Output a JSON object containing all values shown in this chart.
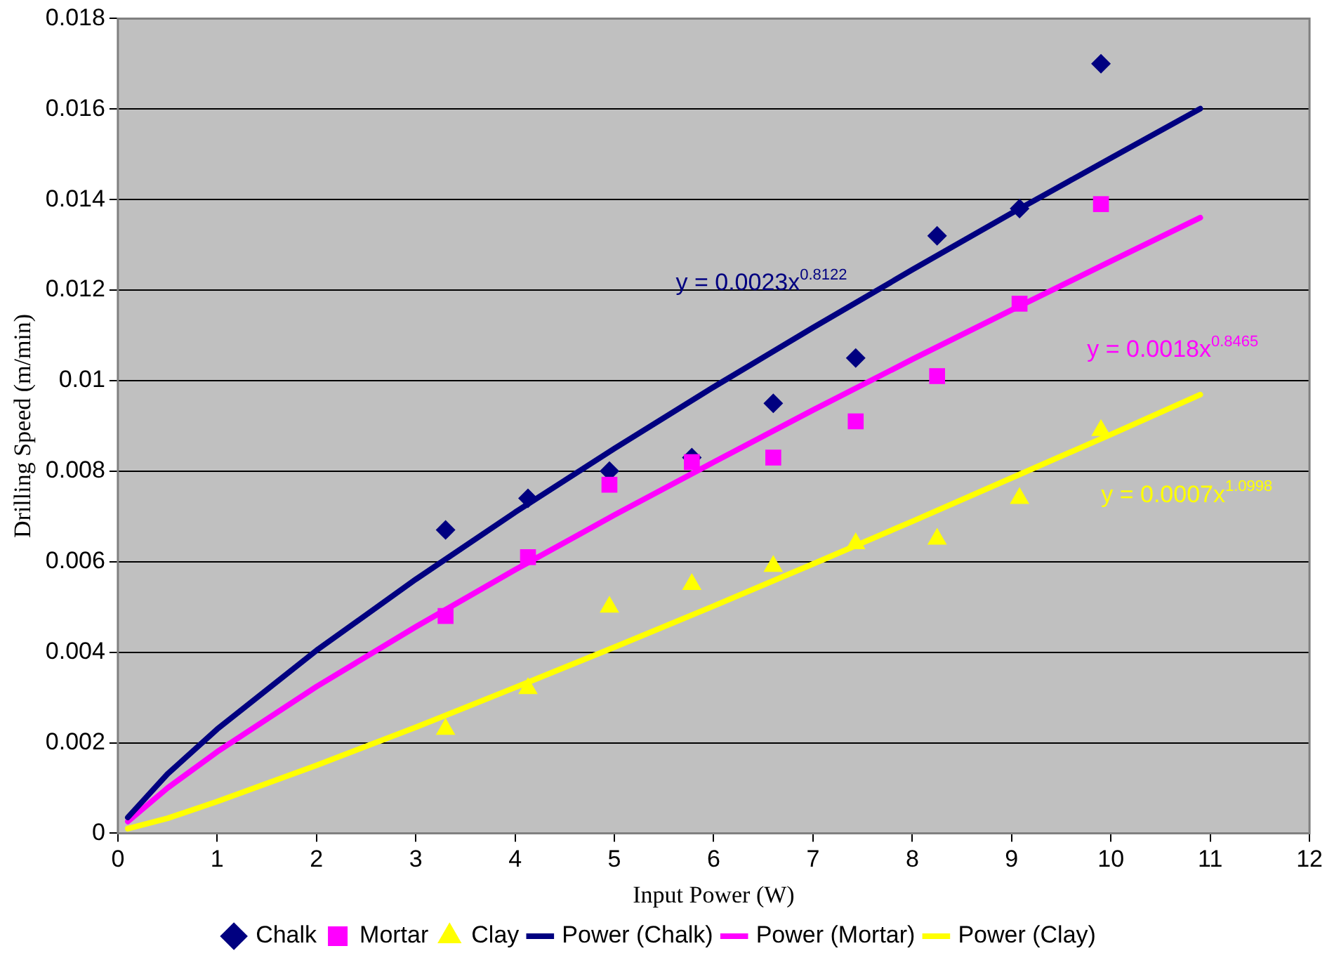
{
  "chart_data": {
    "type": "scatter",
    "xlabel": "Input Power (W)",
    "ylabel": "Drilling Speed (m/min)",
    "xlim": [
      0,
      12
    ],
    "xticks": [
      0,
      1,
      2,
      3,
      4,
      5,
      6,
      7,
      8,
      9,
      10,
      11,
      12
    ],
    "ylim": [
      0,
      0.018
    ],
    "yticks": [
      0,
      0.002,
      0.004,
      0.006,
      0.008,
      0.01,
      0.012,
      0.014,
      0.016,
      0.018
    ],
    "grid": "y",
    "legend": "bottom",
    "series": [
      {
        "name": "Chalk",
        "type": "scatter",
        "marker": "diamond",
        "color": "#000080",
        "x": [
          3.3,
          4.13,
          4.95,
          5.78,
          6.6,
          7.43,
          8.25,
          9.08,
          9.9
        ],
        "values": [
          0.0067,
          0.0074,
          0.008,
          0.0083,
          0.0095,
          0.0105,
          0.0132,
          0.0138,
          0.017
        ]
      },
      {
        "name": "Mortar",
        "type": "scatter",
        "marker": "square",
        "color": "#ff00ff",
        "x": [
          3.3,
          4.13,
          4.95,
          5.78,
          6.6,
          7.43,
          8.25,
          9.08,
          9.9
        ],
        "values": [
          0.0048,
          0.0061,
          0.0077,
          0.0082,
          0.0083,
          0.0091,
          0.0101,
          0.0117,
          0.0139
        ]
      },
      {
        "name": "Clay",
        "type": "scatter",
        "marker": "triangle",
        "color": "#ffff00",
        "x": [
          3.3,
          4.13,
          4.95,
          5.78,
          6.6,
          7.43,
          8.25,
          9.08,
          9.9
        ],
        "values": [
          0.0023,
          0.0032,
          0.005,
          0.0055,
          0.0059,
          0.0064,
          0.0065,
          0.0074,
          0.0089
        ]
      },
      {
        "name": "Power (Chalk)",
        "type": "line",
        "marker": "none",
        "color": "#000080",
        "x": [
          0.1,
          0.5,
          1,
          2,
          3,
          4,
          5,
          6,
          7,
          8,
          9,
          10,
          10.9
        ],
        "values": [
          0.00035,
          0.00131,
          0.0023,
          0.00404,
          0.00561,
          0.00709,
          0.0085,
          0.00986,
          0.01117,
          0.01245,
          0.0137,
          0.01492,
          0.01601
        ]
      },
      {
        "name": "Power (Mortar)",
        "type": "line",
        "marker": "none",
        "color": "#ff00ff",
        "x": [
          0.1,
          0.5,
          1,
          2,
          3,
          4,
          5,
          6,
          7,
          8,
          9,
          10,
          10.9
        ],
        "values": [
          0.00026,
          0.001,
          0.0018,
          0.00324,
          0.00456,
          0.00582,
          0.00703,
          0.0082,
          0.00935,
          0.01047,
          0.01156,
          0.01264,
          0.0136
        ]
      },
      {
        "name": "Power (Clay)",
        "type": "line",
        "marker": "none",
        "color": "#ffff00",
        "x": [
          0.1,
          0.5,
          1,
          2,
          3,
          4,
          5,
          6,
          7,
          8,
          9,
          10,
          10.9
        ],
        "values": [
          0.0001,
          0.00033,
          0.0007,
          0.0015,
          0.00234,
          0.00322,
          0.00411,
          0.00502,
          0.00595,
          0.00689,
          0.00785,
          0.00881,
          0.00969
        ]
      }
    ],
    "annotations": [
      "y = 0.0023x$^{0.8122}$",
      "y = 0.0018x$^{0.8465}$",
      "y = 0.0007x$^{1.0998}$"
    ]
  }
}
